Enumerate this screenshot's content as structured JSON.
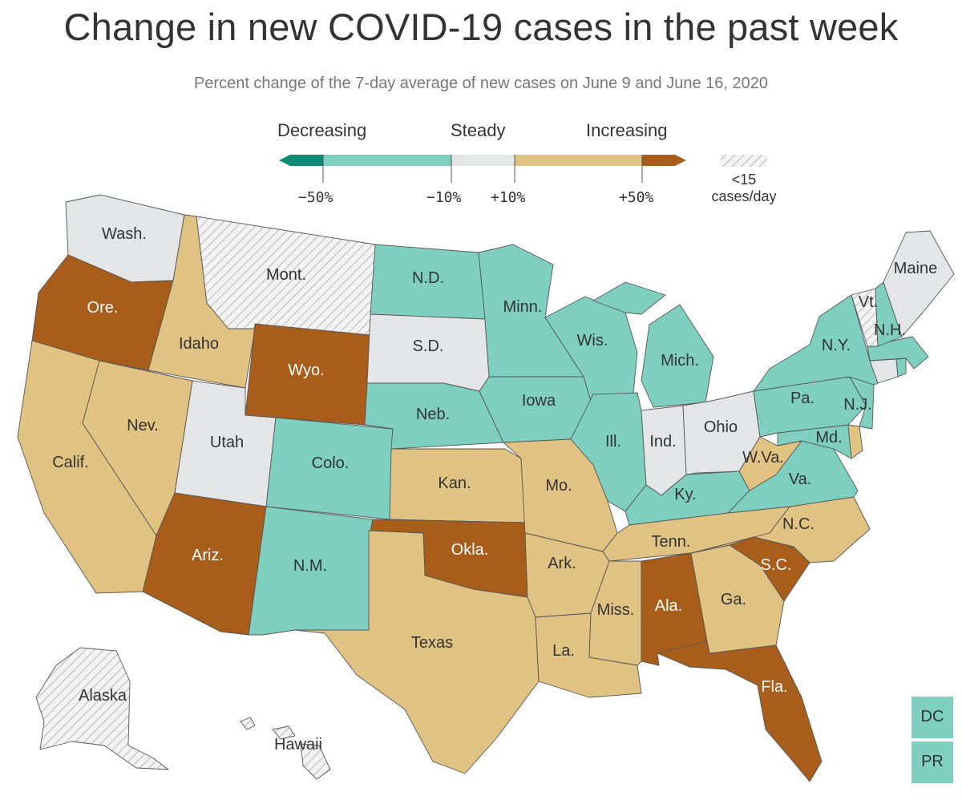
{
  "title": "Change in new COVID-19 cases in the past week",
  "subtitle": "Percent change of the 7-day average of new cases on June 9 and June 16, 2020",
  "legend": {
    "categories": [
      "Decreasing",
      "Steady",
      "Increasing"
    ],
    "ticks": [
      "−50%",
      "−10%",
      "+10%",
      "+50%"
    ],
    "insufficient_label_line1": "<15",
    "insufficient_label_line2": "cases/day"
  },
  "colors": {
    "strong_decrease": "#0e8b76",
    "decrease": "#7fcfc1",
    "steady": "#e4e5e7",
    "increase": "#e0c383",
    "strong_increase": "#a85e1a",
    "hatch": "#c9c9c9"
  },
  "states": {
    "wa": {
      "name": "Wash.",
      "category": "steady"
    },
    "or": {
      "name": "Ore.",
      "category": "strong_increase"
    },
    "ca": {
      "name": "Calif.",
      "category": "increase"
    },
    "id": {
      "name": "Idaho",
      "category": "increase"
    },
    "nv": {
      "name": "Nev.",
      "category": "increase"
    },
    "mt": {
      "name": "Mont.",
      "category": "insufficient"
    },
    "wy": {
      "name": "Wyo.",
      "category": "strong_increase"
    },
    "ut": {
      "name": "Utah",
      "category": "steady"
    },
    "az": {
      "name": "Ariz.",
      "category": "strong_increase"
    },
    "co": {
      "name": "Colo.",
      "category": "decrease"
    },
    "nm": {
      "name": "N.M.",
      "category": "decrease"
    },
    "nd": {
      "name": "N.D.",
      "category": "decrease"
    },
    "sd": {
      "name": "S.D.",
      "category": "steady"
    },
    "ne": {
      "name": "Neb.",
      "category": "decrease"
    },
    "ks": {
      "name": "Kan.",
      "category": "increase"
    },
    "ok": {
      "name": "Okla.",
      "category": "strong_increase"
    },
    "tx": {
      "name": "Texas",
      "category": "increase"
    },
    "mn": {
      "name": "Minn.",
      "category": "decrease"
    },
    "ia": {
      "name": "Iowa",
      "category": "decrease"
    },
    "mo": {
      "name": "Mo.",
      "category": "increase"
    },
    "ar": {
      "name": "Ark.",
      "category": "increase"
    },
    "la": {
      "name": "La.",
      "category": "increase"
    },
    "wi": {
      "name": "Wis.",
      "category": "decrease"
    },
    "il": {
      "name": "Ill.",
      "category": "decrease"
    },
    "mi": {
      "name": "Mich.",
      "category": "decrease"
    },
    "in": {
      "name": "Ind.",
      "category": "steady"
    },
    "oh": {
      "name": "Ohio",
      "category": "steady"
    },
    "ky": {
      "name": "Ky.",
      "category": "decrease"
    },
    "tn": {
      "name": "Tenn.",
      "category": "increase"
    },
    "ms": {
      "name": "Miss.",
      "category": "increase"
    },
    "al": {
      "name": "Ala.",
      "category": "strong_increase"
    },
    "ga": {
      "name": "Ga.",
      "category": "increase"
    },
    "fl": {
      "name": "Fla.",
      "category": "strong_increase"
    },
    "sc": {
      "name": "S.C.",
      "category": "strong_increase"
    },
    "nc": {
      "name": "N.C.",
      "category": "increase"
    },
    "va": {
      "name": "Va.",
      "category": "decrease"
    },
    "wv": {
      "name": "W.Va.",
      "category": "increase"
    },
    "md": {
      "name": "Md.",
      "category": "decrease"
    },
    "de": {
      "name": "",
      "category": "increase"
    },
    "pa": {
      "name": "Pa.",
      "category": "decrease"
    },
    "nj": {
      "name": "N.J.",
      "category": "decrease"
    },
    "ny": {
      "name": "N.Y.",
      "category": "decrease"
    },
    "ct": {
      "name": "",
      "category": "steady"
    },
    "ri": {
      "name": "",
      "category": "decrease"
    },
    "ma": {
      "name": "",
      "category": "decrease"
    },
    "vt": {
      "name": "Vt.",
      "category": "insufficient"
    },
    "nh": {
      "name": "N.H.",
      "category": "decrease"
    },
    "me": {
      "name": "Maine",
      "category": "steady"
    },
    "ak": {
      "name": "Alaska",
      "category": "insufficient"
    },
    "hi": {
      "name": "Hawaii",
      "category": "insufficient"
    },
    "dc": {
      "name": "DC",
      "category": "decrease"
    },
    "pr": {
      "name": "PR",
      "category": "decrease"
    }
  }
}
